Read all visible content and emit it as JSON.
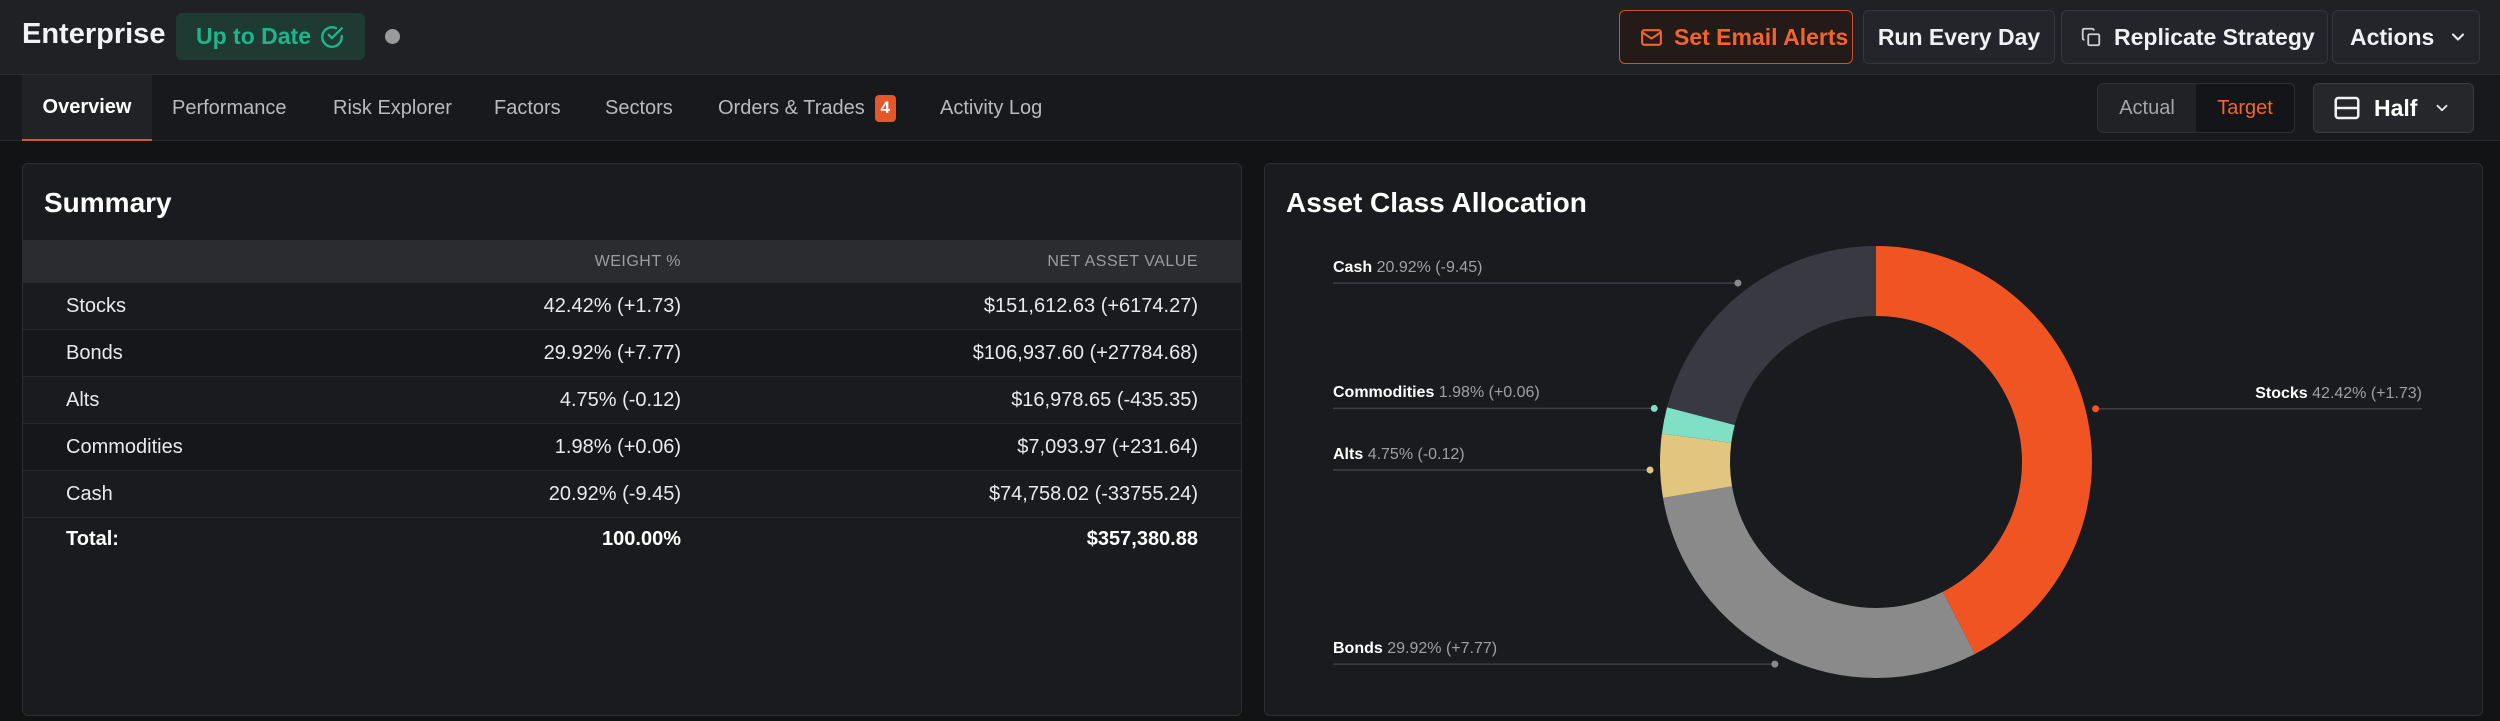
{
  "header": {
    "title": "Enterprise",
    "status": "Up to Date",
    "buttons": {
      "email_alerts": "Set Email Alerts",
      "run": "Run Every Day",
      "replicate": "Replicate Strategy",
      "actions": "Actions"
    }
  },
  "tabs": [
    {
      "label": "Overview"
    },
    {
      "label": "Performance"
    },
    {
      "label": "Risk Explorer"
    },
    {
      "label": "Factors"
    },
    {
      "label": "Sectors"
    },
    {
      "label": "Orders & Trades",
      "badge": "4"
    },
    {
      "label": "Activity Log"
    }
  ],
  "view_toggle": {
    "options": [
      "Actual",
      "Target"
    ],
    "selected": "Target"
  },
  "layout_select": {
    "value": "Half",
    "icon": "half-layout-icon"
  },
  "summary": {
    "title": "Summary",
    "columns": [
      "WEIGHT %",
      "NET ASSET VALUE"
    ],
    "rows": [
      {
        "name": "Stocks",
        "weight": "42.42% (+1.73)",
        "nav": "$151,612.63 (+6174.27)"
      },
      {
        "name": "Bonds",
        "weight": "29.92% (+7.77)",
        "nav": "$106,937.60 (+27784.68)"
      },
      {
        "name": "Alts",
        "weight": "4.75% (-0.12)",
        "nav": "$16,978.65 (-435.35)"
      },
      {
        "name": "Commodities",
        "weight": "1.98% (+0.06)",
        "nav": "$7,093.97 (+231.64)"
      },
      {
        "name": "Cash",
        "weight": "20.92% (-9.45)",
        "nav": "$74,758.02 (-33755.24)"
      }
    ],
    "total": {
      "label": "Total:",
      "weight": "100.00%",
      "nav": "$357,380.88"
    }
  },
  "allocation": {
    "title": "Asset Class Allocation",
    "chart_data": {
      "type": "pie",
      "donut": true,
      "categories": [
        "Stocks",
        "Bonds",
        "Alts",
        "Commodities",
        "Cash"
      ],
      "values": [
        42.42,
        29.92,
        4.75,
        1.98,
        20.92
      ],
      "labels": [
        "42.42% (+1.73)",
        "29.92% (+7.77)",
        "4.75% (-0.12)",
        "1.98% (+0.06)",
        "20.92% (-9.45)"
      ],
      "colors": [
        "#f05423",
        "#8a8a8a",
        "#e2c57e",
        "#7fe0c6",
        "#393a41"
      ]
    }
  },
  "colors": {
    "accent": "#f2642f",
    "success": "#1fb58a"
  }
}
